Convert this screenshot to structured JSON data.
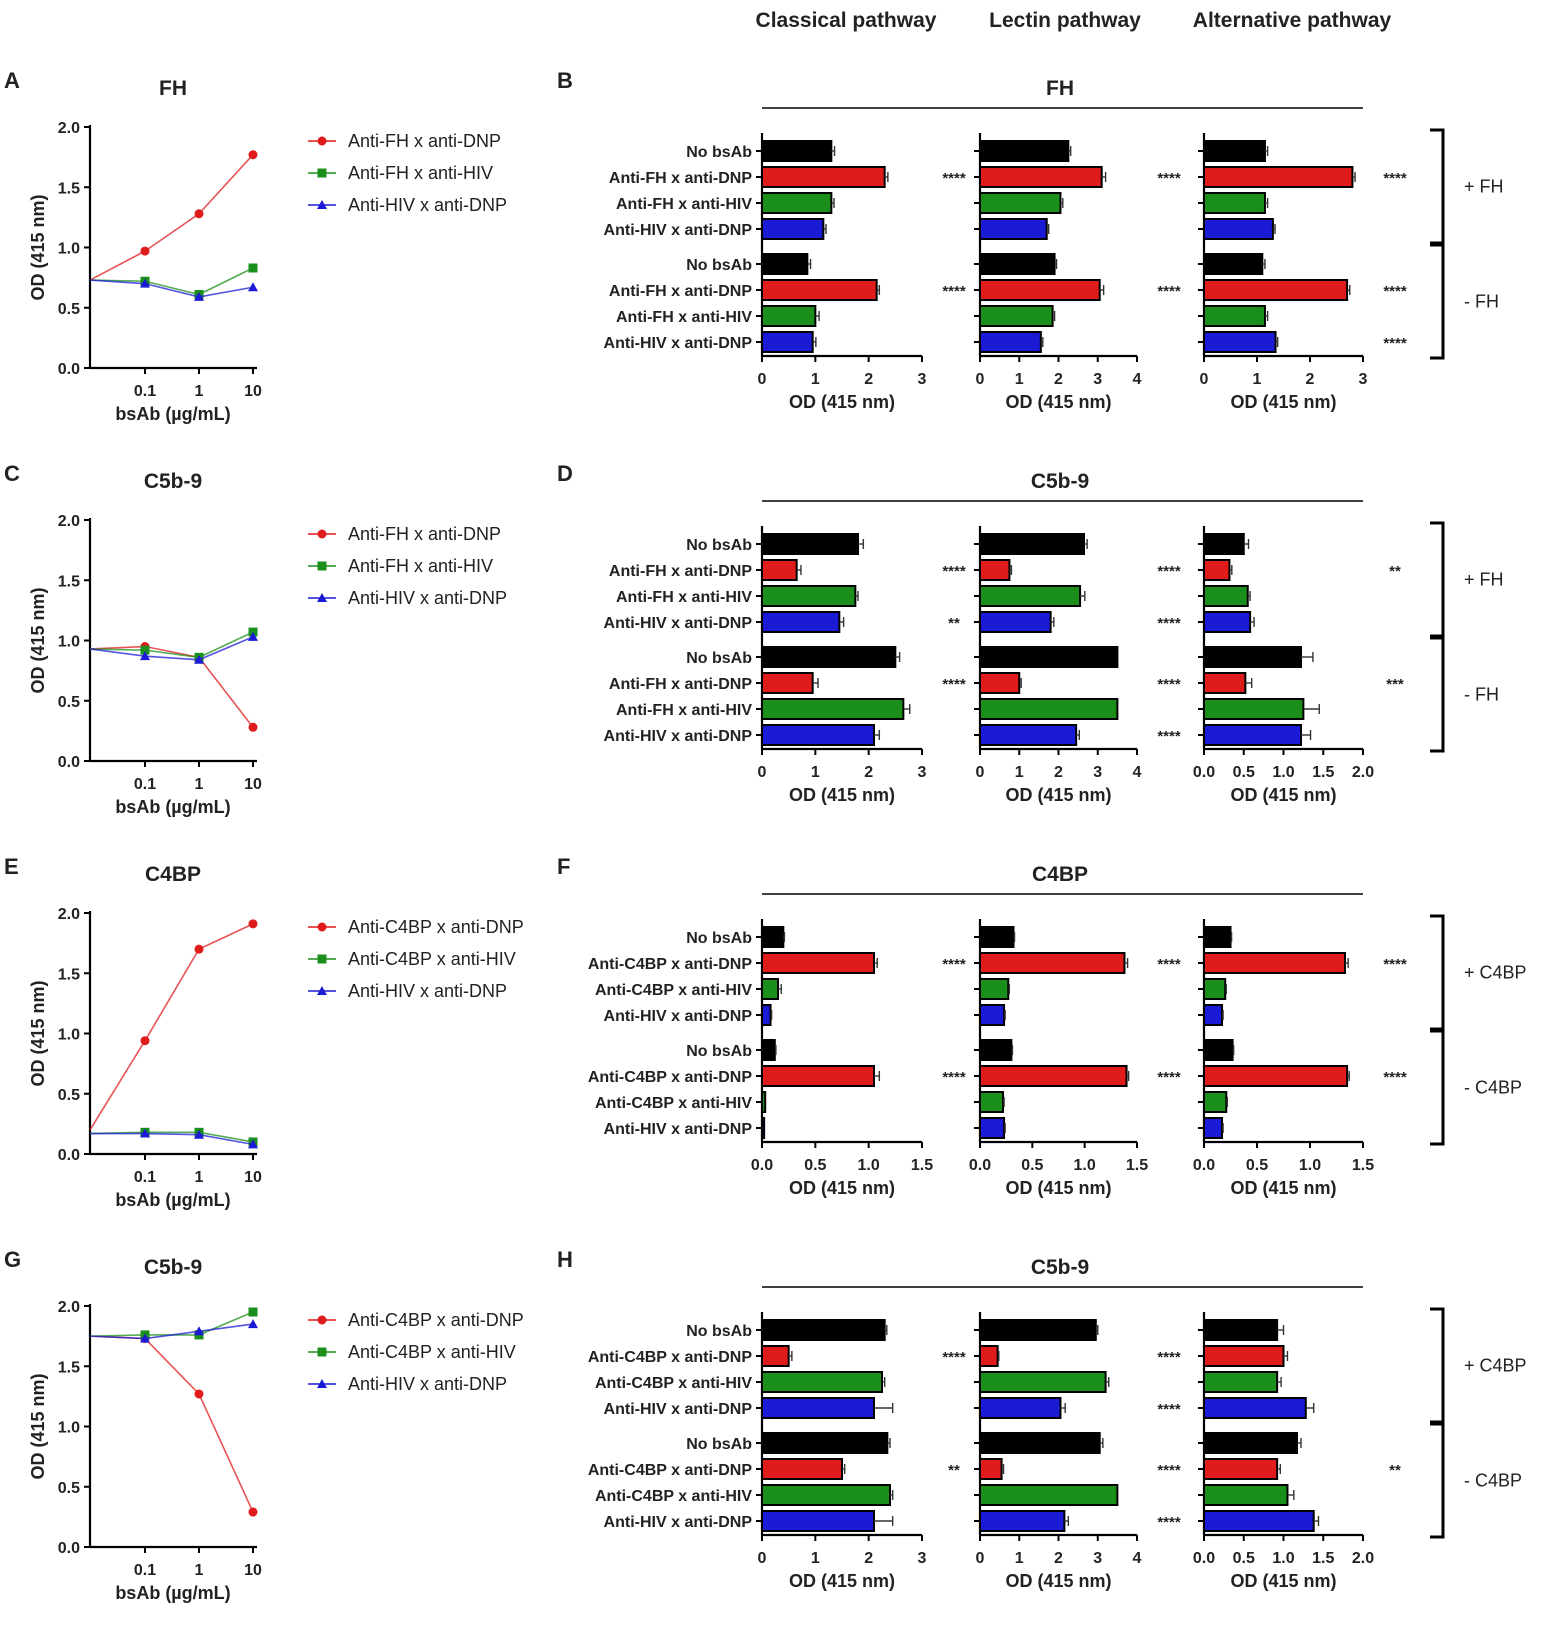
{
  "column_titles": [
    "Classical pathway",
    "Lectin pathway",
    "Alternative pathway"
  ],
  "colors": {
    "red": "#e01b1b",
    "green": "#1b8f1b",
    "blue": "#1b1bd6",
    "black": "#000000"
  },
  "chart_data": [
    {
      "panel": "A",
      "type": "line",
      "title": "FH",
      "x": [
        0.01,
        0.1,
        1,
        10
      ],
      "xticks": [
        "0.1",
        "1",
        "10"
      ],
      "xlabel": "bsAb (µg/mL)",
      "ylabel": "OD (415 nm)",
      "ylim": [
        0,
        2.0
      ],
      "yticks": [
        "0.0",
        "0.5",
        "1.0",
        "1.5",
        "2.0"
      ],
      "series": [
        {
          "name": "Anti-FH x anti-DNP",
          "color": "red",
          "marker": "circle",
          "values": [
            0.73,
            0.97,
            1.28,
            1.77
          ]
        },
        {
          "name": "Anti-FH x anti-HIV",
          "color": "green",
          "marker": "square",
          "values": [
            0.73,
            0.72,
            0.61,
            0.83
          ]
        },
        {
          "name": "Anti-HIV x anti-DNP",
          "color": "blue",
          "marker": "triangle",
          "values": [
            0.73,
            0.7,
            0.59,
            0.67
          ]
        }
      ]
    },
    {
      "panel": "C",
      "type": "line",
      "title": "C5b-9",
      "x": [
        0.01,
        0.1,
        1,
        10
      ],
      "xticks": [
        "0.1",
        "1",
        "10"
      ],
      "xlabel": "bsAb (µg/mL)",
      "ylabel": "OD (415 nm)",
      "ylim": [
        0,
        2.0
      ],
      "yticks": [
        "0.0",
        "0.5",
        "1.0",
        "1.5",
        "2.0"
      ],
      "series": [
        {
          "name": "Anti-FH x anti-DNP",
          "color": "red",
          "marker": "circle",
          "values": [
            0.93,
            0.95,
            0.86,
            0.28
          ]
        },
        {
          "name": "Anti-FH x anti-HIV",
          "color": "green",
          "marker": "square",
          "values": [
            0.93,
            0.92,
            0.86,
            1.07
          ]
        },
        {
          "name": "Anti-HIV x anti-DNP",
          "color": "blue",
          "marker": "triangle",
          "values": [
            0.93,
            0.87,
            0.84,
            1.03
          ]
        }
      ]
    },
    {
      "panel": "E",
      "type": "line",
      "title": "C4BP",
      "x": [
        0.01,
        0.1,
        1,
        10
      ],
      "xticks": [
        "0.1",
        "1",
        "10"
      ],
      "xlabel": "bsAb (µg/mL)",
      "ylabel": "OD (415 nm)",
      "ylim": [
        0,
        2.0
      ],
      "yticks": [
        "0.0",
        "0.5",
        "1.0",
        "1.5",
        "2.0"
      ],
      "series": [
        {
          "name": "Anti-C4BP x anti-DNP",
          "color": "red",
          "marker": "circle",
          "values": [
            0.2,
            0.94,
            1.7,
            1.91
          ]
        },
        {
          "name": "Anti-C4BP x anti-HIV",
          "color": "green",
          "marker": "square",
          "values": [
            0.17,
            0.18,
            0.18,
            0.1
          ]
        },
        {
          "name": "Anti-HIV x anti-DNP",
          "color": "blue",
          "marker": "triangle",
          "values": [
            0.17,
            0.17,
            0.16,
            0.08
          ]
        }
      ]
    },
    {
      "panel": "G",
      "type": "line",
      "title": "C5b-9",
      "x": [
        0.01,
        0.1,
        1,
        10
      ],
      "xticks": [
        "0.1",
        "1",
        "10"
      ],
      "xlabel": "bsAb (µg/mL)",
      "ylabel": "OD (415 nm)",
      "ylim": [
        0,
        2.0
      ],
      "yticks": [
        "0.0",
        "0.5",
        "1.0",
        "1.5",
        "2.0"
      ],
      "series": [
        {
          "name": "Anti-C4BP x anti-DNP",
          "color": "red",
          "marker": "circle",
          "values": [
            1.75,
            1.73,
            1.27,
            0.29
          ]
        },
        {
          "name": "Anti-C4BP x anti-HIV",
          "color": "green",
          "marker": "square",
          "values": [
            1.75,
            1.76,
            1.76,
            1.95
          ]
        },
        {
          "name": "Anti-HIV x anti-DNP",
          "color": "blue",
          "marker": "triangle",
          "values": [
            1.75,
            1.73,
            1.79,
            1.85
          ]
        }
      ]
    },
    {
      "panel": "B",
      "type": "bar",
      "title": "FH",
      "categories": [
        "No bsAb",
        "Anti-FH x anti-DNP",
        "Anti-FH x anti-HIV",
        "Anti-HIV x anti-DNP",
        "No bsAb",
        "Anti-FH x anti-DNP",
        "Anti-FH x anti-HIV",
        "Anti-HIV x anti-DNP"
      ],
      "bar_colors": [
        "black",
        "red",
        "green",
        "blue",
        "black",
        "red",
        "green",
        "blue"
      ],
      "groups": [
        "+ FH",
        "- FH"
      ],
      "xlabel": "OD (415 nm)",
      "subplots": [
        {
          "pathway": "Classical pathway",
          "xlim": [
            0,
            3
          ],
          "xticks": [
            "0",
            "1",
            "2",
            "3"
          ],
          "values": [
            1.3,
            2.3,
            1.3,
            1.15,
            0.85,
            2.15,
            1.0,
            0.95
          ],
          "errors": [
            0.06,
            0.06,
            0.05,
            0.05,
            0.06,
            0.05,
            0.07,
            0.06
          ],
          "significance": [
            "",
            "****",
            "",
            "",
            "",
            "****",
            "",
            ""
          ]
        },
        {
          "pathway": "Lectin pathway",
          "xlim": [
            0,
            4
          ],
          "xticks": [
            "0",
            "1",
            "2",
            "3",
            "4"
          ],
          "values": [
            2.25,
            3.1,
            2.05,
            1.7,
            1.9,
            3.05,
            1.85,
            1.55
          ],
          "errors": [
            0.06,
            0.1,
            0.06,
            0.05,
            0.05,
            0.1,
            0.05,
            0.05
          ],
          "significance": [
            "",
            "****",
            "",
            "",
            "",
            "****",
            "",
            ""
          ]
        },
        {
          "pathway": "Alternative pathway",
          "xlim": [
            0,
            3
          ],
          "xticks": [
            "0",
            "1",
            "2",
            "3"
          ],
          "values": [
            1.15,
            2.8,
            1.15,
            1.3,
            1.1,
            2.7,
            1.15,
            1.35
          ],
          "errors": [
            0.05,
            0.05,
            0.05,
            0.04,
            0.05,
            0.05,
            0.05,
            0.04
          ],
          "significance": [
            "",
            "****",
            "",
            "",
            "",
            "****",
            "",
            "****"
          ]
        }
      ]
    },
    {
      "panel": "D",
      "type": "bar",
      "title": "C5b-9",
      "categories": [
        "No bsAb",
        "Anti-FH x anti-DNP",
        "Anti-FH x anti-HIV",
        "Anti-HIV x anti-DNP",
        "No bsAb",
        "Anti-FH x anti-DNP",
        "Anti-FH x anti-HIV",
        "Anti-HIV x anti-DNP"
      ],
      "bar_colors": [
        "black",
        "red",
        "green",
        "blue",
        "black",
        "red",
        "green",
        "blue"
      ],
      "groups": [
        "+ FH",
        "- FH"
      ],
      "xlabel": "OD (415 nm)",
      "subplots": [
        {
          "pathway": "Classical pathway",
          "xlim": [
            0,
            3
          ],
          "xticks": [
            "0",
            "1",
            "2",
            "3"
          ],
          "values": [
            1.8,
            0.65,
            1.75,
            1.45,
            2.5,
            0.95,
            2.65,
            2.1
          ],
          "errors": [
            0.1,
            0.08,
            0.05,
            0.08,
            0.08,
            0.1,
            0.12,
            0.1
          ],
          "significance": [
            "",
            "****",
            "",
            "**",
            "",
            "****",
            "",
            ""
          ]
        },
        {
          "pathway": "Lectin pathway",
          "xlim": [
            0,
            4
          ],
          "xticks": [
            "0",
            "1",
            "2",
            "3",
            "4"
          ],
          "values": [
            2.65,
            0.75,
            2.55,
            1.8,
            3.5,
            1.0,
            3.5,
            2.45
          ],
          "errors": [
            0.08,
            0.05,
            0.12,
            0.08,
            0.0,
            0.05,
            0.0,
            0.08
          ],
          "significance": [
            "",
            "****",
            "",
            "****",
            "",
            "****",
            "",
            "****"
          ]
        },
        {
          "pathway": "Alternative pathway",
          "xlim": [
            0,
            2
          ],
          "xticks": [
            "0.0",
            "0.5",
            "1.0",
            "1.5",
            "2.0"
          ],
          "values": [
            0.5,
            0.32,
            0.55,
            0.58,
            1.22,
            0.52,
            1.25,
            1.22
          ],
          "errors": [
            0.06,
            0.03,
            0.03,
            0.05,
            0.15,
            0.08,
            0.2,
            0.12
          ],
          "significance": [
            "",
            "**",
            "",
            "",
            "",
            "***",
            "",
            ""
          ]
        }
      ]
    },
    {
      "panel": "F",
      "type": "bar",
      "title": "C4BP",
      "categories": [
        "No bsAb",
        "Anti-C4BP x anti-DNP",
        "Anti-C4BP x anti-HIV",
        "Anti-HIV x anti-DNP",
        "No bsAb",
        "Anti-C4BP x anti-DNP",
        "Anti-C4BP x anti-HIV",
        "Anti-HIV x anti-DNP"
      ],
      "bar_colors": [
        "black",
        "red",
        "green",
        "blue",
        "black",
        "red",
        "green",
        "blue"
      ],
      "groups": [
        "+ C4BP",
        "- C4BP"
      ],
      "xlabel": "OD (415 nm)",
      "subplots": [
        {
          "pathway": "Classical pathway",
          "xlim": [
            0,
            1.5
          ],
          "xticks": [
            "0.0",
            "0.5",
            "1.0",
            "1.5"
          ],
          "values": [
            0.2,
            1.05,
            0.15,
            0.08,
            0.12,
            1.05,
            0.03,
            0.02
          ],
          "errors": [
            0.01,
            0.03,
            0.03,
            0.01,
            0.01,
            0.05,
            0.0,
            0.0
          ],
          "significance": [
            "",
            "****",
            "",
            "",
            "",
            "****",
            "",
            ""
          ]
        },
        {
          "pathway": "Lectin pathway",
          "xlim": [
            0,
            1.5
          ],
          "xticks": [
            "0.0",
            "0.5",
            "1.0",
            "1.5"
          ],
          "values": [
            0.32,
            1.38,
            0.27,
            0.23,
            0.3,
            1.4,
            0.22,
            0.23
          ],
          "errors": [
            0.01,
            0.03,
            0.01,
            0.01,
            0.01,
            0.02,
            0.01,
            0.01
          ],
          "significance": [
            "",
            "****",
            "",
            "",
            "",
            "****",
            "",
            ""
          ]
        },
        {
          "pathway": "Alternative pathway",
          "xlim": [
            0,
            1.5
          ],
          "xticks": [
            "0.0",
            "0.5",
            "1.0",
            "1.5"
          ],
          "values": [
            0.25,
            1.33,
            0.2,
            0.17,
            0.27,
            1.35,
            0.21,
            0.17
          ],
          "errors": [
            0.01,
            0.03,
            0.01,
            0.01,
            0.01,
            0.02,
            0.01,
            0.01
          ],
          "significance": [
            "",
            "****",
            "",
            "",
            "",
            "****",
            "",
            ""
          ]
        }
      ]
    },
    {
      "panel": "H",
      "type": "bar",
      "title": "C5b-9",
      "categories": [
        "No bsAb",
        "Anti-C4BP x anti-DNP",
        "Anti-C4BP x anti-HIV",
        "Anti-HIV x anti-DNP",
        "No bsAb",
        "Anti-C4BP x anti-DNP",
        "Anti-C4BP x anti-HIV",
        "Anti-HIV x anti-DNP"
      ],
      "bar_colors": [
        "black",
        "red",
        "green",
        "blue",
        "black",
        "red",
        "green",
        "blue"
      ],
      "groups": [
        "+ C4BP",
        "- C4BP"
      ],
      "xlabel": "OD (415 nm)",
      "subplots": [
        {
          "pathway": "Classical pathway",
          "xlim": [
            0,
            3
          ],
          "xticks": [
            "0",
            "1",
            "2",
            "3"
          ],
          "values": [
            2.3,
            0.5,
            2.25,
            2.1,
            2.35,
            1.5,
            2.4,
            2.1
          ],
          "errors": [
            0.04,
            0.06,
            0.05,
            0.35,
            0.05,
            0.05,
            0.05,
            0.35
          ],
          "significance": [
            "",
            "****",
            "",
            "",
            "",
            "**",
            "",
            ""
          ]
        },
        {
          "pathway": "Lectin pathway",
          "xlim": [
            0,
            4
          ],
          "xticks": [
            "0",
            "1",
            "2",
            "3",
            "4"
          ],
          "values": [
            2.95,
            0.45,
            3.2,
            2.05,
            3.05,
            0.55,
            3.5,
            2.15
          ],
          "errors": [
            0.05,
            0.03,
            0.08,
            0.12,
            0.08,
            0.05,
            0.0,
            0.1
          ],
          "significance": [
            "",
            "****",
            "",
            "****",
            "",
            "****",
            "",
            "****"
          ]
        },
        {
          "pathway": "Alternative pathway",
          "xlim": [
            0,
            2
          ],
          "xticks": [
            "0.0",
            "0.5",
            "1.0",
            "1.5",
            "2.0"
          ],
          "values": [
            0.92,
            1.0,
            0.92,
            1.28,
            1.17,
            0.92,
            1.05,
            1.38
          ],
          "errors": [
            0.08,
            0.05,
            0.05,
            0.1,
            0.05,
            0.04,
            0.08,
            0.06
          ],
          "significance": [
            "",
            "",
            "",
            "",
            "",
            "**",
            "",
            ""
          ]
        }
      ]
    }
  ]
}
